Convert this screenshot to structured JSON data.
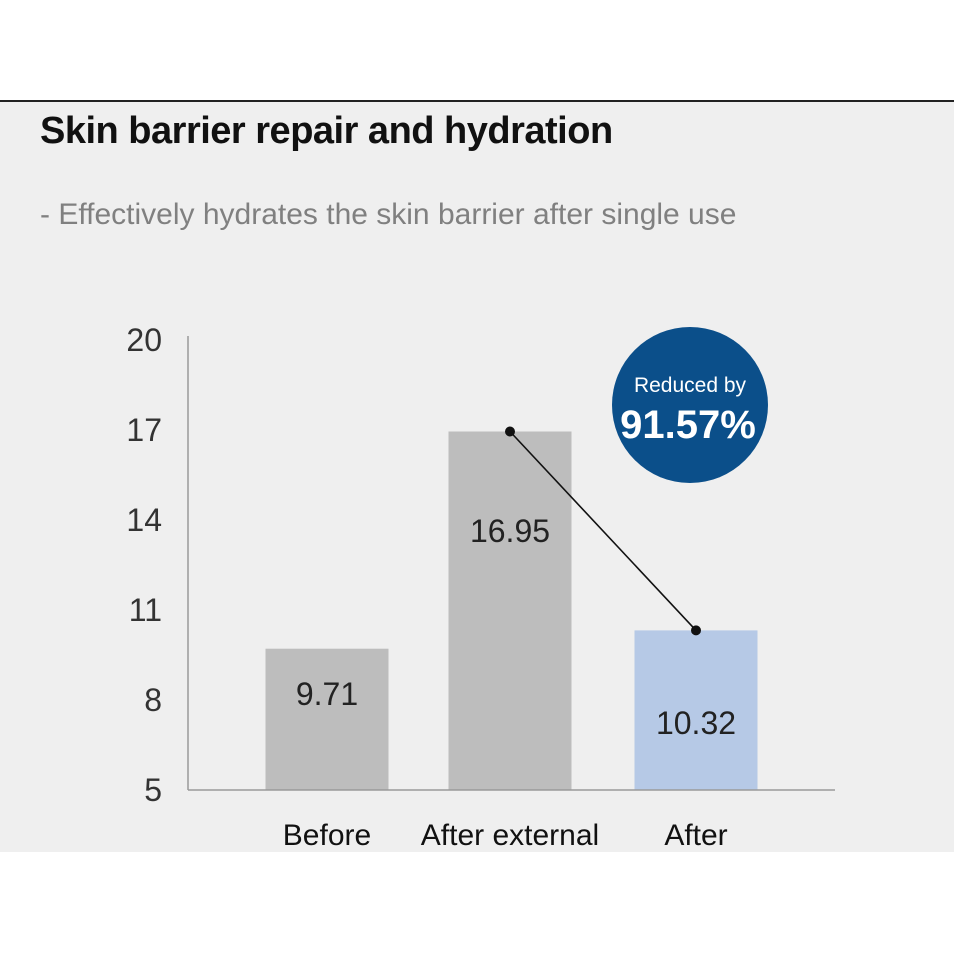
{
  "header": {
    "title": "Skin barrier repair and hydration",
    "subtitle": "- Effectively hydrates the skin barrier after single use"
  },
  "badge": {
    "line1": "Reduced by",
    "line2": "91.57%",
    "color": "#0b4f8a"
  },
  "colors": {
    "panel_background": "#efefef",
    "gray_bar": "#bdbdbd",
    "highlight_bar": "#b6c9e6",
    "connector_line": "#111111"
  },
  "chart_data": {
    "type": "bar",
    "categories": [
      "Before",
      "After external",
      "After"
    ],
    "values": [
      9.71,
      16.95,
      10.32
    ],
    "value_labels": [
      "9.71",
      "16.95",
      "10.32"
    ],
    "bar_colors": [
      "#bdbdbd",
      "#bdbdbd",
      "#b6c9e6"
    ],
    "ylim": [
      5,
      20
    ],
    "yticks": [
      5,
      8,
      11,
      14,
      17,
      20
    ],
    "grid": false,
    "connector": {
      "from_index": 1,
      "to_index": 2
    },
    "title": "Skin barrier repair and hydration",
    "xlabel": "",
    "ylabel": ""
  }
}
